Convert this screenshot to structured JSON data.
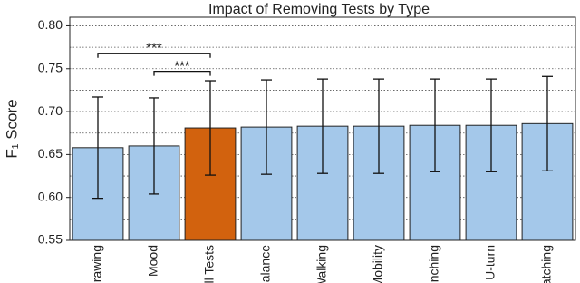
{
  "chart_data": {
    "type": "bar",
    "title": "Impact of Removing Tests by Type",
    "y_label": "F₁ Score",
    "categories": [
      "Drawing",
      "Mood",
      "All Tests",
      "Balance",
      "Walking",
      "Mobility",
      "Pinching",
      "U-turn",
      "Matching"
    ],
    "values": [
      0.658,
      0.66,
      0.681,
      0.682,
      0.683,
      0.683,
      0.684,
      0.684,
      0.686
    ],
    "errors": [
      0.059,
      0.056,
      0.055,
      0.055,
      0.055,
      0.055,
      0.054,
      0.054,
      0.055
    ],
    "colors": [
      "#a4c8ea",
      "#a4c8ea",
      "#d2620e",
      "#a4c8ea",
      "#a4c8ea",
      "#a4c8ea",
      "#a4c8ea",
      "#a4c8ea",
      "#a4c8ea"
    ],
    "ylim": [
      0.55,
      0.81
    ],
    "yticks": [
      {
        "value": 0.55,
        "label": "0.55"
      },
      {
        "value": 0.6,
        "label": "0.60"
      },
      {
        "value": 0.65,
        "label": "0.65"
      },
      {
        "value": 0.7,
        "label": "0.70"
      },
      {
        "value": 0.75,
        "label": "0.75"
      },
      {
        "value": 0.8,
        "label": "0.80"
      }
    ],
    "minor_grid": [
      0.575,
      0.625,
      0.675,
      0.725,
      0.775
    ],
    "grid": true,
    "annotations": [
      {
        "from": 0,
        "to": 2,
        "y": 0.768,
        "label": "***"
      },
      {
        "from": 1,
        "to": 2,
        "y": 0.747,
        "label": "***"
      }
    ]
  }
}
